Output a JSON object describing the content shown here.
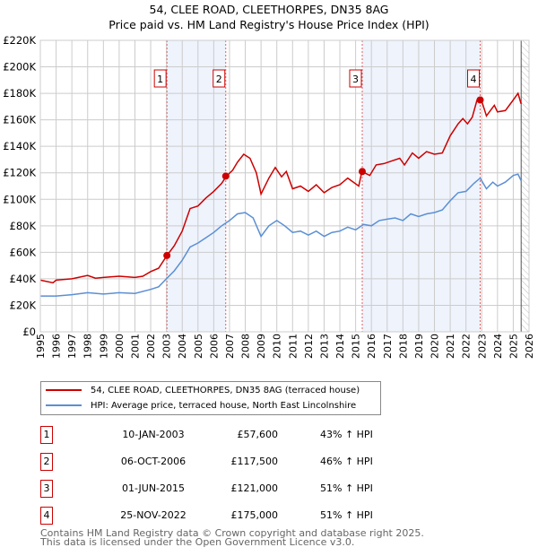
{
  "chart_data": {
    "type": "line",
    "title": "54, CLEE ROAD, CLEETHORPES, DN35 8AG",
    "subtitle": "Price paid vs. HM Land Registry's House Price Index (HPI)",
    "xlim": [
      1995,
      2026
    ],
    "ylim": [
      0,
      220000
    ],
    "x_ticks": [
      "1995",
      "1996",
      "1997",
      "1998",
      "1999",
      "2000",
      "2001",
      "2002",
      "2003",
      "2004",
      "2005",
      "2006",
      "2007",
      "2008",
      "2009",
      "2010",
      "2011",
      "2012",
      "2013",
      "2014",
      "2015",
      "2016",
      "2017",
      "2018",
      "2019",
      "2020",
      "2021",
      "2022",
      "2023",
      "2024",
      "2025",
      "2026"
    ],
    "y_ticks": [
      "£0",
      "£20K",
      "£40K",
      "£60K",
      "£80K",
      "£100K",
      "£120K",
      "£140K",
      "£160K",
      "£180K",
      "£200K",
      "£220K"
    ],
    "grid": true,
    "colors": {
      "property": "#cc0000",
      "hpi": "#5b8fd4",
      "shade": "#eef3fc",
      "marker_line": "#e06060"
    },
    "series": [
      {
        "name": "54, CLEE ROAD, CLEETHORPES, DN35 8AG (terraced house)",
        "color": "#cc0000",
        "x": [
          1995,
          1995.8,
          1996,
          1997,
          1998,
          1998.5,
          1999,
          2000,
          2001,
          2001.5,
          2002,
          2002.5,
          2003,
          2003.5,
          2004,
          2004.5,
          2005,
          2005.5,
          2006,
          2006.5,
          2006.8,
          2007.2,
          2007.5,
          2007.9,
          2008.3,
          2008.7,
          2009,
          2009.5,
          2009.9,
          2010.3,
          2010.6,
          2011,
          2011.5,
          2012,
          2012.5,
          2013,
          2013.5,
          2014,
          2014.5,
          2015.2,
          2015.4,
          2015.9,
          2016.3,
          2016.8,
          2017.3,
          2017.8,
          2018.1,
          2018.6,
          2019,
          2019.5,
          2020,
          2020.5,
          2021,
          2021.5,
          2021.8,
          2022.1,
          2022.4,
          2022.7,
          2023,
          2023.3,
          2023.8,
          2024,
          2024.5,
          2025,
          2025.3,
          2025.5
        ],
        "y": [
          39000,
          37000,
          39000,
          40000,
          42500,
          40500,
          41000,
          42000,
          41000,
          42000,
          45500,
          48000,
          57000,
          65000,
          76000,
          93000,
          95000,
          101000,
          106000,
          112000,
          117500,
          122000,
          128000,
          134000,
          131000,
          120000,
          104000,
          116000,
          124000,
          117000,
          121000,
          108000,
          110000,
          106000,
          111000,
          105000,
          109000,
          111000,
          116000,
          110000,
          121000,
          118000,
          126000,
          127000,
          129000,
          131000,
          126000,
          135000,
          131000,
          136000,
          134000,
          135000,
          148000,
          157000,
          161000,
          157000,
          162000,
          175000,
          174000,
          163000,
          171000,
          166000,
          167000,
          175000,
          180000,
          172000
        ]
      },
      {
        "name": "HPI: Average price, terraced house, North East Lincolnshire",
        "color": "#5b8fd4",
        "x": [
          1995,
          1996,
          1997,
          1998,
          1999,
          2000,
          2001,
          2002,
          2002.5,
          2003,
          2003.5,
          2004,
          2004.5,
          2005,
          2005.5,
          2006,
          2006.5,
          2007,
          2007.5,
          2008,
          2008.5,
          2009,
          2009.5,
          2010,
          2010.5,
          2011,
          2011.5,
          2012,
          2012.5,
          2013,
          2013.5,
          2014,
          2014.5,
          2015,
          2015.5,
          2016,
          2016.5,
          2017,
          2017.5,
          2018,
          2018.5,
          2019,
          2019.5,
          2020,
          2020.5,
          2021,
          2021.5,
          2022,
          2022.5,
          2022.9,
          2023.3,
          2023.7,
          2024,
          2024.5,
          2025,
          2025.3,
          2025.5
        ],
        "y": [
          27000,
          27000,
          28000,
          29500,
          28500,
          29500,
          29000,
          32000,
          34000,
          40000,
          46000,
          54000,
          64000,
          67000,
          71000,
          75000,
          80000,
          84000,
          89000,
          90000,
          86000,
          72000,
          80000,
          84000,
          80000,
          75000,
          76000,
          73000,
          76000,
          72000,
          75000,
          76000,
          79000,
          77000,
          81000,
          80000,
          84000,
          85000,
          86000,
          84000,
          89000,
          87000,
          89000,
          90000,
          92000,
          99000,
          105000,
          106000,
          112000,
          116000,
          108000,
          113000,
          110000,
          113000,
          118000,
          119000,
          114000
        ]
      }
    ],
    "transactions": [
      {
        "n": "1",
        "x": 2003.03,
        "y": 57600,
        "date": "10-JAN-2003",
        "price": "£57,600",
        "hpi": "43% ↑ HPI"
      },
      {
        "n": "2",
        "x": 2006.76,
        "y": 117500,
        "date": "06-OCT-2006",
        "price": "£117,500",
        "hpi": "46% ↑ HPI"
      },
      {
        "n": "3",
        "x": 2015.42,
        "y": 121000,
        "date": "01-JUN-2015",
        "price": "£121,000",
        "hpi": "51% ↑ HPI"
      },
      {
        "n": "4",
        "x": 2022.9,
        "y": 175000,
        "date": "25-NOV-2022",
        "price": "£175,000",
        "hpi": "51% ↑ HPI"
      }
    ],
    "shaded": [
      [
        2003.03,
        2006.76
      ],
      [
        2015.42,
        2022.9
      ]
    ],
    "forecast_from": 2025.5
  },
  "footer": {
    "line1": "Contains HM Land Registry data © Crown copyright and database right 2025.",
    "line2": "This data is licensed under the Open Government Licence v3.0."
  }
}
